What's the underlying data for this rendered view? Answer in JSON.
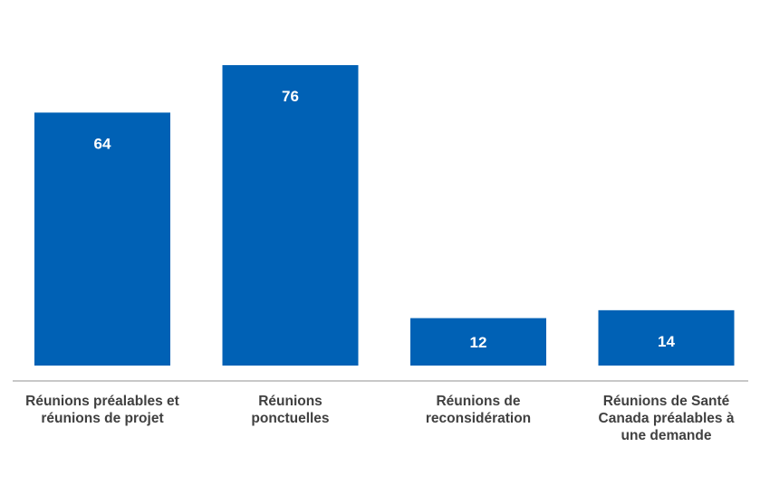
{
  "chart_data": {
    "type": "bar",
    "title": "",
    "xlabel": "",
    "ylabel": "",
    "ylim": [
      0,
      76
    ],
    "grid": false,
    "legend": "none",
    "bar_color": "#0061B5",
    "axis_color": "#A6A6A6",
    "label_color": "#404040",
    "categories": [
      [
        "Réunions préalables et",
        "réunions de projet"
      ],
      [
        "Réunions",
        "ponctuelles"
      ],
      [
        "Réunions de",
        "reconsidération"
      ],
      [
        "Réunions de Santé",
        "Canada préalables à",
        "une demande"
      ]
    ],
    "values": [
      64,
      76,
      12,
      14
    ],
    "data_labels": [
      "64",
      "76",
      "12",
      "14"
    ]
  }
}
